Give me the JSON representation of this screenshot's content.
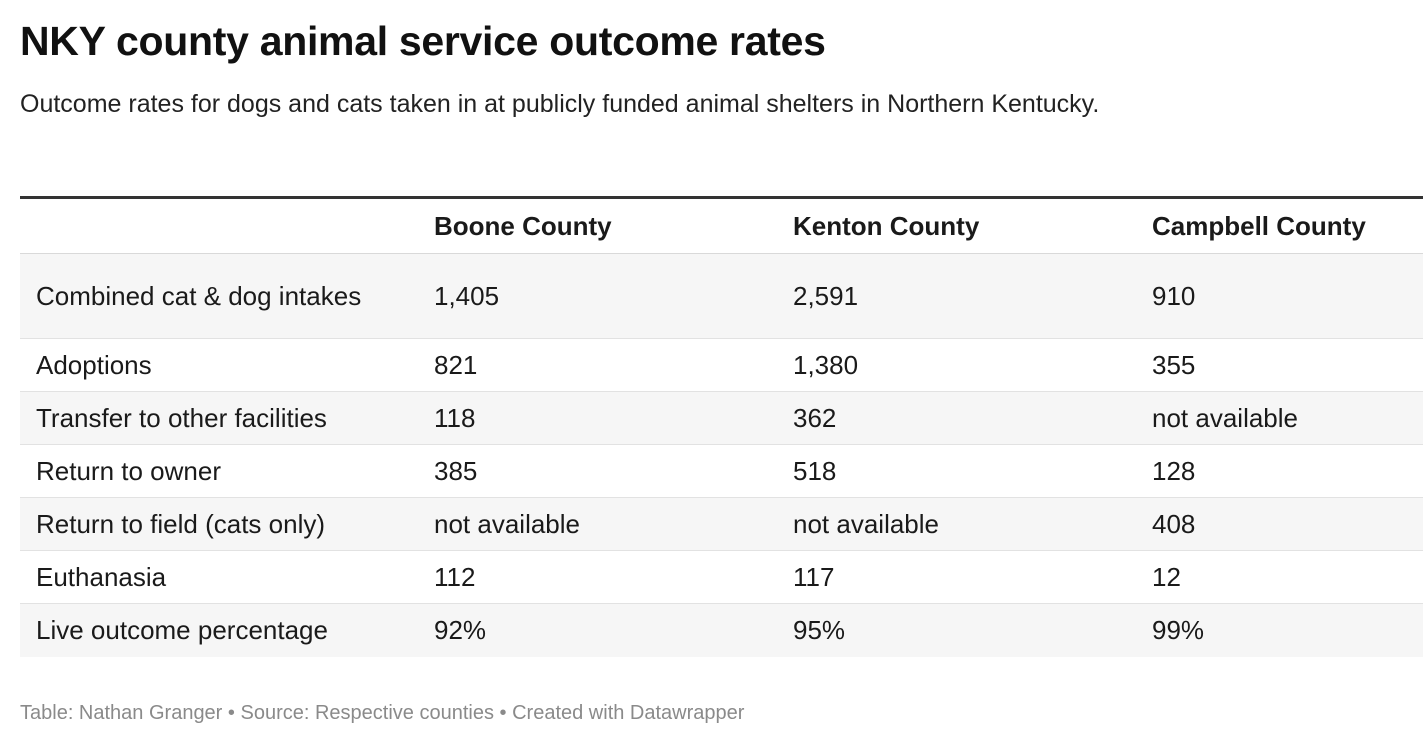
{
  "title": "NKY county animal service outcome rates",
  "subtitle": "Outcome rates for dogs and cats taken in at publicly funded animal shelters in Northern Kentucky.",
  "footer": {
    "credit": "Table: Nathan Granger",
    "source": "Source: Respective counties",
    "tool": "Created with Datawrapper",
    "separator": "•"
  },
  "colors": {
    "header_rule": "#333333",
    "stripe": "#f6f6f6",
    "footer_text": "#8a8a8a"
  },
  "chart_data": {
    "type": "table",
    "columns": [
      "",
      "Boone County",
      "Kenton County",
      "Campbell County"
    ],
    "rows": [
      {
        "label": "Combined cat & dog intakes",
        "values": [
          "1,405",
          "2,591",
          "910"
        ]
      },
      {
        "label": "Adoptions",
        "values": [
          "821",
          "1,380",
          "355"
        ]
      },
      {
        "label": "Transfer to other facilities",
        "values": [
          "118",
          "362",
          "not available"
        ]
      },
      {
        "label": "Return to owner",
        "values": [
          "385",
          "518",
          "128"
        ]
      },
      {
        "label": "Return to field (cats only)",
        "values": [
          "not available",
          "not available",
          "408"
        ]
      },
      {
        "label": "Euthanasia",
        "values": [
          "112",
          "117",
          "12"
        ]
      },
      {
        "label": "Live outcome percentage",
        "values": [
          "92%",
          "95%",
          "99%"
        ]
      }
    ]
  }
}
